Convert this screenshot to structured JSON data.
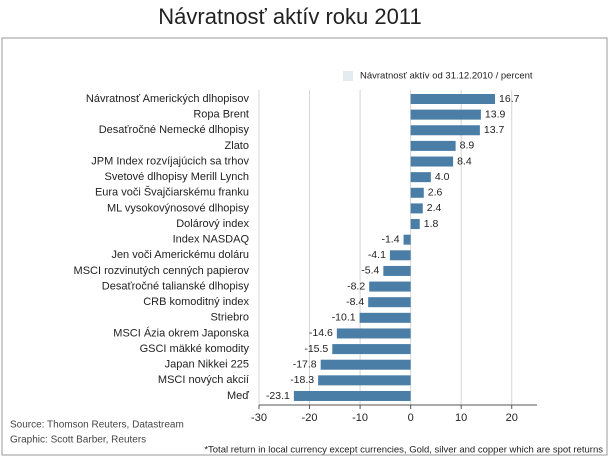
{
  "chart_data": {
    "type": "bar",
    "orientation": "horizontal",
    "title": "Návratnosť aktív roku 2011",
    "categories": [
      "Návratnosť Amerických dlhopisov",
      "Ropa Brent",
      "Desaťročné Nemecké dlhopisy",
      "Zlato",
      "JPM Index rozvíjajúcich sa trhov",
      "Svetové dlhopisy Merill Lynch",
      "Eura voči Švajčiarskému franku",
      "ML vysokovýnosové dlhopisy",
      "Dolárový index",
      "Index NASDAQ",
      "Jen voči Americkému doláru",
      "MSCI rozvinutých cenných papierov",
      "Desaťročné talianské dlhopisy",
      "CRB komoditný index",
      "Striebro",
      "MSCI Ázia okrem Japonska",
      "GSCI mäkké komodity",
      "Japan Nikkei 225",
      "MSCI nových akcií",
      "Meď"
    ],
    "series": [
      {
        "name": "Návratnosť aktív od 31.12.2010 / percent",
        "color": "#4a7ea6",
        "values": [
          16.7,
          13.9,
          13.7,
          8.9,
          8.4,
          4.0,
          2.6,
          2.4,
          1.8,
          -1.4,
          -4.1,
          -5.4,
          -8.2,
          -8.4,
          -10.1,
          -14.6,
          -15.5,
          -17.8,
          -18.3,
          -23.1
        ],
        "value_labels": [
          "16.7",
          "13.9",
          "13.7",
          "8.9",
          "8.4",
          "4.0",
          "2.6",
          "2.4",
          "1.8",
          "-1.4",
          "-4.1",
          "-5.4",
          "-8.2",
          "-8.4",
          "-10.1",
          "-14.6",
          "-15.5",
          "-17.8",
          "-18.3",
          "-23.1"
        ]
      }
    ],
    "xlim": [
      -30,
      25
    ],
    "xticks": [
      -30,
      -20,
      -10,
      0,
      10,
      20
    ],
    "grid": true,
    "source": "Source: Thomson Reuters, Datastream",
    "credit": "Graphic: Scott Barber, Reuters",
    "footnote": "*Total return in local currency except currencies, Gold, silver and copper which are spot returns"
  }
}
